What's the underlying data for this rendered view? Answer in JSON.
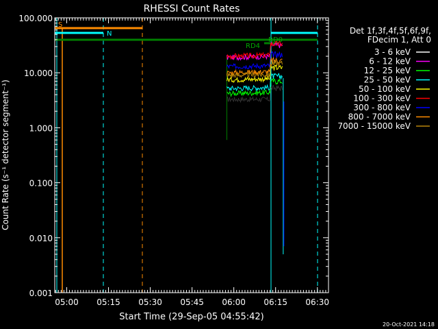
{
  "chart_data": {
    "type": "line",
    "title": "RHESSI Count Rates",
    "xlabel": "Start Time (29-Sep-05 04:55:42)",
    "ylabel": "Count Rate (s⁻¹ detector segment⁻¹)",
    "y_scale": "log",
    "ylim": [
      0.001,
      100
    ],
    "y_ticks": [
      "0.001",
      "0.010",
      "0.100",
      "1.000",
      "10.000",
      "100.000"
    ],
    "xlim": [
      "04:55:42",
      "06:34:00"
    ],
    "x_ticks": [
      "05:00",
      "05:15",
      "05:30",
      "05:45",
      "06:00",
      "06:15",
      "06:30"
    ],
    "legend": {
      "placement": "right",
      "header": [
        "Det 1f,3f,4f,5f,6f,9f,",
        "FDecim 1, Att 0"
      ],
      "entries": [
        {
          "label": "3 - 6 keV",
          "color": "#000000"
        },
        {
          "label": "6 - 12 keV",
          "color": "#ff00ff"
        },
        {
          "label": "12 - 25 keV",
          "color": "#00ff00"
        },
        {
          "label": "25 - 50 keV",
          "color": "#00ffff"
        },
        {
          "label": "50 - 100 keV",
          "color": "#ffff00"
        },
        {
          "label": "100 - 300 keV",
          "color": "#ff0000"
        },
        {
          "label": "300 - 800 keV",
          "color": "#0000ff"
        },
        {
          "label": "800 - 7000 keV",
          "color": "#ff8c00"
        },
        {
          "label": "7000 - 15000 keV",
          "color": "#b8860b"
        }
      ]
    },
    "series": [
      {
        "name": "3 - 6 keV",
        "color": "#000000",
        "x": [
          "05:57:30",
          "06:13:00"
        ],
        "y": [
          3.3,
          3.3
        ]
      },
      {
        "name": "6 - 12 keV",
        "color": "#ff00ff",
        "x": [
          "05:57:30",
          "06:13:00"
        ],
        "y": [
          19,
          20
        ]
      },
      {
        "name": "12 - 25 keV",
        "color": "#00ff00",
        "x": [
          "05:57:30",
          "06:13:00"
        ],
        "y": [
          4.2,
          4.4
        ]
      },
      {
        "name": "25 - 50 keV",
        "color": "#00ffff",
        "x": [
          "05:57:30",
          "06:13:00"
        ],
        "y": [
          5.2,
          5.4
        ]
      },
      {
        "name": "50 - 100 keV",
        "color": "#ffff00",
        "x": [
          "05:57:30",
          "06:13:00"
        ],
        "y": [
          7.5,
          7.8
        ]
      },
      {
        "name": "100 - 300 keV",
        "color": "#ff0000",
        "x": [
          "05:57:30",
          "06:13:00"
        ],
        "y": [
          20,
          21
        ]
      },
      {
        "name": "300 - 800 keV",
        "color": "#0000ff",
        "x": [
          "05:57:30",
          "06:13:00"
        ],
        "y": [
          13,
          13.5
        ]
      },
      {
        "name": "800 - 7000 keV",
        "color": "#ff8c00",
        "x": [
          "05:57:30",
          "06:13:00"
        ],
        "y": [
          10,
          10.5
        ]
      },
      {
        "name": "7000 - 15000 keV",
        "color": "#b8860b",
        "x": [
          "05:57:30",
          "06:13:00"
        ],
        "y": [
          9,
          9.3
        ]
      }
    ],
    "annotations": {
      "saa_label": "S",
      "night_label": "N",
      "rd4_label": "RD4",
      "rd0_label": "RD0"
    },
    "footer_date": "20-Oct-2021 14:18"
  }
}
